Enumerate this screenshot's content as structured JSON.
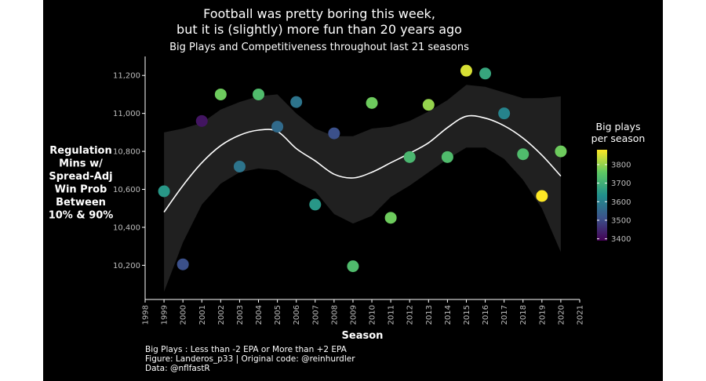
{
  "chart_data": {
    "type": "scatter",
    "title_line1": "Football was pretty boring this week,",
    "title_line2": "but it is (slightly) more fun than 20 years ago",
    "subtitle": "Big Plays and Competitiveness throughout last 21 seasons",
    "xlabel": "Season",
    "ylabel_lines": [
      "Regulation",
      "Mins w/",
      "Spread-Adj",
      "Win Prob",
      "Between",
      "10% & 90%"
    ],
    "xlim": [
      1998,
      2021
    ],
    "ylim": [
      10020,
      11300
    ],
    "x_ticks": [
      1998,
      1999,
      2000,
      2001,
      2002,
      2003,
      2004,
      2005,
      2006,
      2007,
      2008,
      2009,
      2010,
      2011,
      2012,
      2013,
      2014,
      2015,
      2016,
      2017,
      2018,
      2019,
      2020,
      2021
    ],
    "y_ticks": [
      10200,
      10400,
      10600,
      10800,
      11000,
      11200
    ],
    "y_tick_labels": [
      "10,200",
      "10,400",
      "10,600",
      "10,800",
      "11,000",
      "11,200"
    ],
    "points": [
      {
        "x": 1999,
        "y": 10590,
        "big_plays": 3650
      },
      {
        "x": 2000,
        "y": 10205,
        "big_plays": 3510
      },
      {
        "x": 2001,
        "y": 10960,
        "big_plays": 3420
      },
      {
        "x": 2002,
        "y": 11100,
        "big_plays": 3770
      },
      {
        "x": 2003,
        "y": 10720,
        "big_plays": 3580
      },
      {
        "x": 2004,
        "y": 11100,
        "big_plays": 3730
      },
      {
        "x": 2005,
        "y": 10930,
        "big_plays": 3560
      },
      {
        "x": 2006,
        "y": 11060,
        "big_plays": 3580
      },
      {
        "x": 2007,
        "y": 10520,
        "big_plays": 3650
      },
      {
        "x": 2008,
        "y": 10895,
        "big_plays": 3510
      },
      {
        "x": 2009,
        "y": 10195,
        "big_plays": 3730
      },
      {
        "x": 2010,
        "y": 11055,
        "big_plays": 3770
      },
      {
        "x": 2011,
        "y": 10450,
        "big_plays": 3770
      },
      {
        "x": 2012,
        "y": 10770,
        "big_plays": 3720
      },
      {
        "x": 2013,
        "y": 11045,
        "big_plays": 3800
      },
      {
        "x": 2014,
        "y": 10770,
        "big_plays": 3730
      },
      {
        "x": 2015,
        "y": 11225,
        "big_plays": 3850
      },
      {
        "x": 2016,
        "y": 11210,
        "big_plays": 3680
      },
      {
        "x": 2017,
        "y": 11000,
        "big_plays": 3610
      },
      {
        "x": 2018,
        "y": 10785,
        "big_plays": 3730
      },
      {
        "x": 2019,
        "y": 10565,
        "big_plays": 3880
      },
      {
        "x": 2020,
        "y": 10800,
        "big_plays": 3770
      }
    ],
    "smooth_line": {
      "x": [
        1999,
        2000,
        2001,
        2002,
        2003,
        2004,
        2005,
        2006,
        2007,
        2008,
        2009,
        2010,
        2011,
        2012,
        2013,
        2014,
        2015,
        2016,
        2017,
        2018,
        2019,
        2020
      ],
      "y": [
        10480,
        10620,
        10740,
        10830,
        10885,
        10912,
        10905,
        10815,
        10750,
        10680,
        10660,
        10690,
        10740,
        10790,
        10845,
        10925,
        10985,
        10975,
        10935,
        10870,
        10780,
        10670
      ],
      "ci_lower": [
        10060,
        10320,
        10520,
        10630,
        10690,
        10710,
        10700,
        10640,
        10590,
        10470,
        10420,
        10460,
        10560,
        10620,
        10690,
        10760,
        10820,
        10820,
        10760,
        10650,
        10500,
        10270
      ],
      "ci_upper": [
        10900,
        10920,
        10950,
        11020,
        11060,
        11090,
        11100,
        11000,
        10920,
        10880,
        10880,
        10920,
        10930,
        10960,
        11010,
        11070,
        11150,
        11140,
        11110,
        11080,
        11080,
        11090
      ]
    },
    "legend": {
      "title_lines": [
        "Big plays",
        "per season"
      ],
      "ticks": [
        3400,
        3500,
        3600,
        3700,
        3800
      ],
      "range": [
        3390,
        3880
      ],
      "position": "right",
      "colors": [
        "#440154",
        "#3b528b",
        "#21908c",
        "#5dc863",
        "#fde725"
      ]
    },
    "caption_lines": [
      "Big Plays : Less than -2 EPA or More than +2 EPA",
      "Figure: Landeros_p33 | Original code: @reinhurdler",
      "Data: @nflfastR"
    ],
    "grid": false,
    "background": "#000000"
  }
}
